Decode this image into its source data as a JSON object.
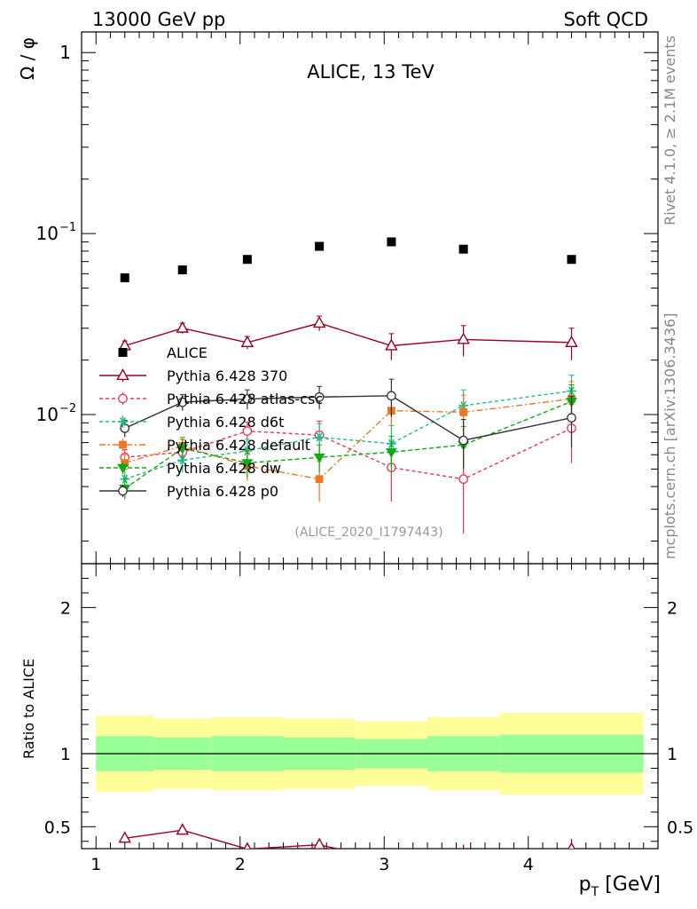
{
  "header": {
    "left": "13000 GeV pp",
    "right": "Soft QCD"
  },
  "side": {
    "top": "Rivet 4.1.0, ≥ 2.1M events",
    "bottom": "mcplots.cern.ch [arXiv:1306.3436]"
  },
  "chart_data": {
    "type": "line",
    "title": "ALICE, 13 TeV",
    "analysis_id": "(ALICE_2020_I1797443)",
    "xlabel": "p_T [GeV]",
    "ylabel": "Ω / φ",
    "ratio_ylabel": "Ratio to ALICE",
    "xlim": [
      0.9,
      4.9
    ],
    "ylim": [
      0.0015,
      1.3
    ],
    "ylog": true,
    "ratio_ylim": [
      0.35,
      2.3
    ],
    "x_ticks": [
      "1",
      "2",
      "3",
      "4"
    ],
    "y_ticks": [
      "1",
      "10⁻¹",
      "10⁻²"
    ],
    "ratio_ticks": [
      "0.5",
      "1",
      "2"
    ],
    "x": [
      1.2,
      1.6,
      2.05,
      2.55,
      3.05,
      3.55,
      4.3
    ],
    "bin_edges": [
      1.0,
      1.4,
      1.8,
      2.3,
      2.8,
      3.3,
      3.8,
      4.8
    ],
    "reference": {
      "name": "ALICE",
      "values": [
        0.057,
        0.063,
        0.072,
        0.085,
        0.09,
        0.082,
        0.072
      ],
      "band_stat": [
        0.12,
        0.11,
        0.12,
        0.11,
        0.1,
        0.12,
        0.13
      ],
      "band_total": [
        0.26,
        0.24,
        0.25,
        0.24,
        0.22,
        0.25,
        0.28
      ]
    },
    "series": [
      {
        "name": "Pythia 6.428 370",
        "color": "#990022",
        "marker": "triangle",
        "dash": "",
        "values": [
          0.024,
          0.03,
          0.025,
          0.032,
          0.024,
          0.026,
          0.025
        ],
        "errors": [
          0.0015,
          0.002,
          0.002,
          0.003,
          0.004,
          0.005,
          0.005
        ]
      },
      {
        "name": "Pythia 6.428 atlas-csc",
        "color": "#ee3355",
        "marker": "circle-open",
        "dash": "4,3",
        "values": [
          0.0058,
          0.0062,
          0.0081,
          0.0077,
          0.0051,
          0.0044,
          0.0084
        ],
        "errors": [
          0.0006,
          0.0008,
          0.001,
          0.0015,
          0.0018,
          0.0022,
          0.003
        ]
      },
      {
        "name": "Pythia 6.428 d6t",
        "color": "#22bb88",
        "marker": "star",
        "dash": "4,3",
        "values": [
          0.0044,
          0.0056,
          0.0063,
          0.0075,
          0.0069,
          0.0112,
          0.0135
        ],
        "errors": [
          0.0006,
          0.0008,
          0.001,
          0.0014,
          0.0018,
          0.0025,
          0.003
        ]
      },
      {
        "name": "Pythia 6.428 default",
        "color": "#ee7722",
        "marker": "square",
        "dash": "7,3,2,3",
        "values": [
          0.0054,
          0.0067,
          0.0052,
          0.0044,
          0.0105,
          0.0103,
          0.0122
        ],
        "errors": [
          0.0006,
          0.0008,
          0.0009,
          0.0011,
          0.002,
          0.0025,
          0.003
        ]
      },
      {
        "name": "Pythia 6.428 dw",
        "color": "#11aa11",
        "marker": "triangle-down",
        "dash": "5,3",
        "values": [
          0.0039,
          0.0065,
          0.0054,
          0.0058,
          0.0062,
          0.0068,
          0.0118
        ],
        "errors": [
          0.0005,
          0.0008,
          0.0009,
          0.001,
          0.0014,
          0.0018,
          0.0028
        ]
      },
      {
        "name": "Pythia 6.428 p0",
        "color": "#333333",
        "marker": "circle-open",
        "dash": "",
        "values": [
          0.0084,
          0.0117,
          0.0122,
          0.0125,
          0.0127,
          0.0072,
          0.0096
        ],
        "errors": [
          0.0009,
          0.0012,
          0.0015,
          0.0018,
          0.003,
          0.0022,
          0.003
        ]
      }
    ]
  }
}
